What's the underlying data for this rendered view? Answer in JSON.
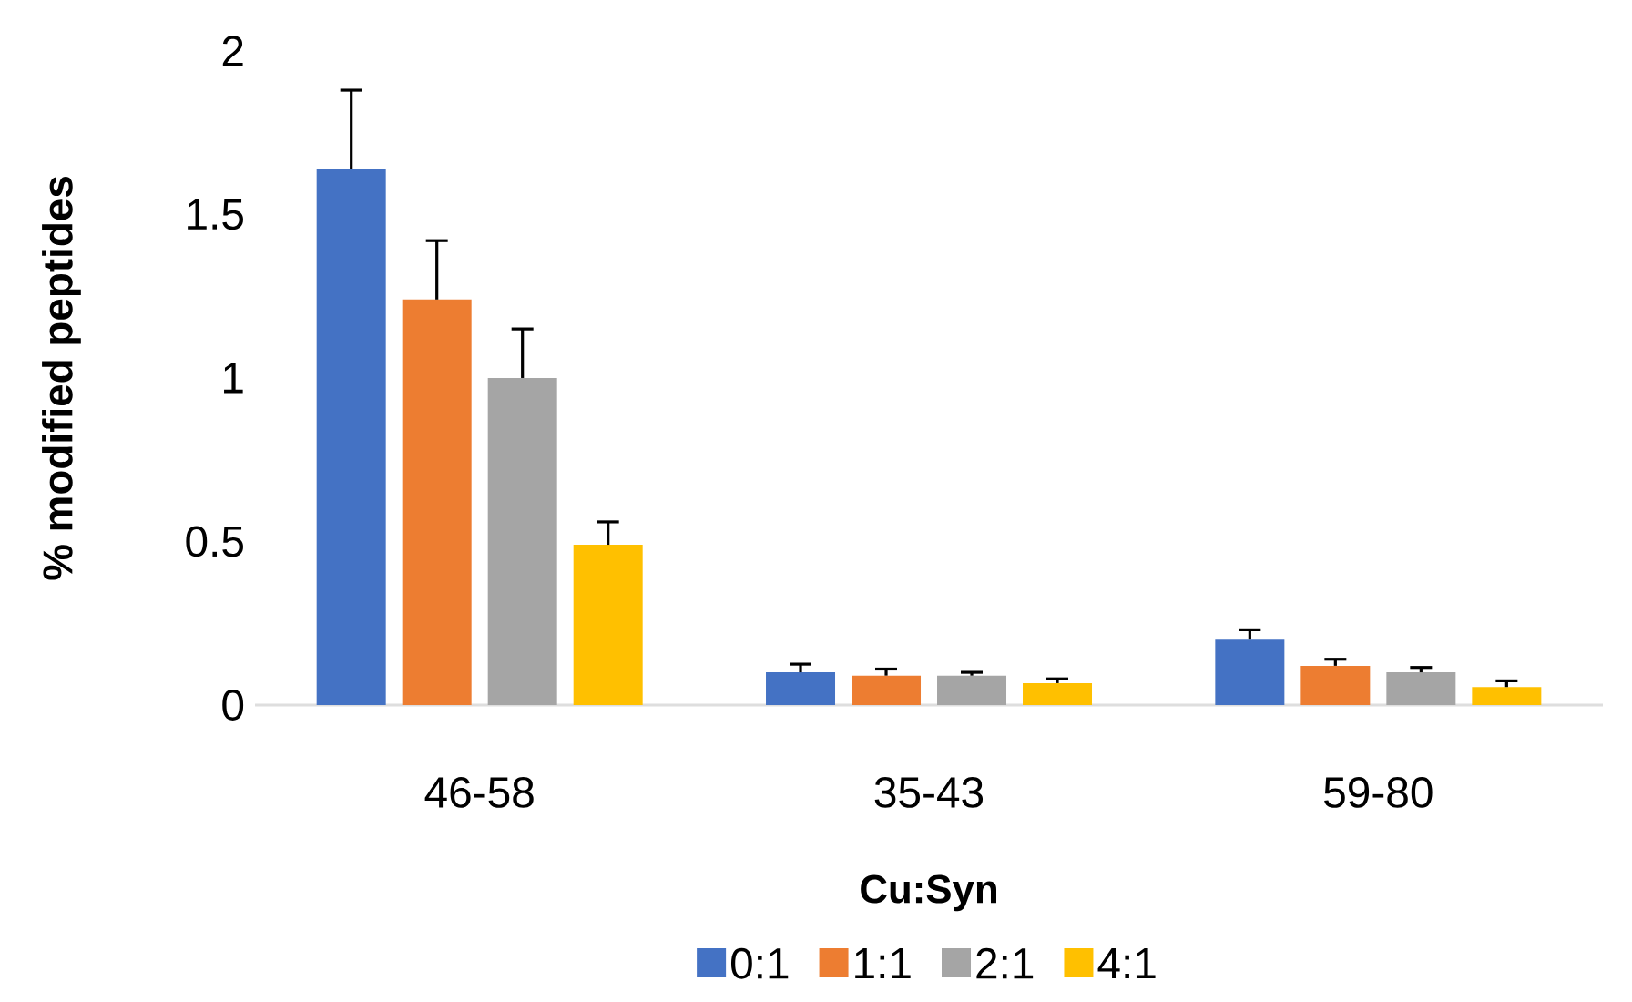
{
  "chart_data": {
    "type": "bar",
    "xlabel": "Cu:Syn",
    "ylabel": "% modified peptides",
    "categories": [
      "46-58",
      "35-43",
      "59-80"
    ],
    "series": [
      {
        "name": "0:1",
        "color": "#4472c4",
        "values": [
          1.64,
          0.1,
          0.2
        ],
        "errors": [
          [
            1.64,
            1.88
          ],
          [
            0.1,
            0.125
          ],
          [
            0.2,
            0.23
          ]
        ]
      },
      {
        "name": "1:1",
        "color": "#ed7d31",
        "values": [
          1.24,
          0.09,
          0.12
        ],
        "errors": [
          [
            1.24,
            1.42
          ],
          [
            0.09,
            0.11
          ],
          [
            0.12,
            0.14
          ]
        ]
      },
      {
        "name": "2:1",
        "color": "#a5a5a5",
        "values": [
          1.0,
          0.09,
          0.1
        ],
        "errors": [
          [
            1.0,
            1.15
          ],
          [
            0.09,
            0.1
          ],
          [
            0.1,
            0.115
          ]
        ]
      },
      {
        "name": "4:1",
        "color": "#ffc000",
        "values": [
          0.49,
          0.067,
          0.055
        ],
        "errors": [
          [
            0.49,
            0.56
          ],
          [
            0.067,
            0.08
          ],
          [
            0.055,
            0.074
          ]
        ]
      }
    ],
    "ylim": [
      0,
      2
    ],
    "yticks": [
      0,
      0.5,
      1,
      1.5,
      2
    ],
    "grid": false,
    "legend": "bottom"
  }
}
